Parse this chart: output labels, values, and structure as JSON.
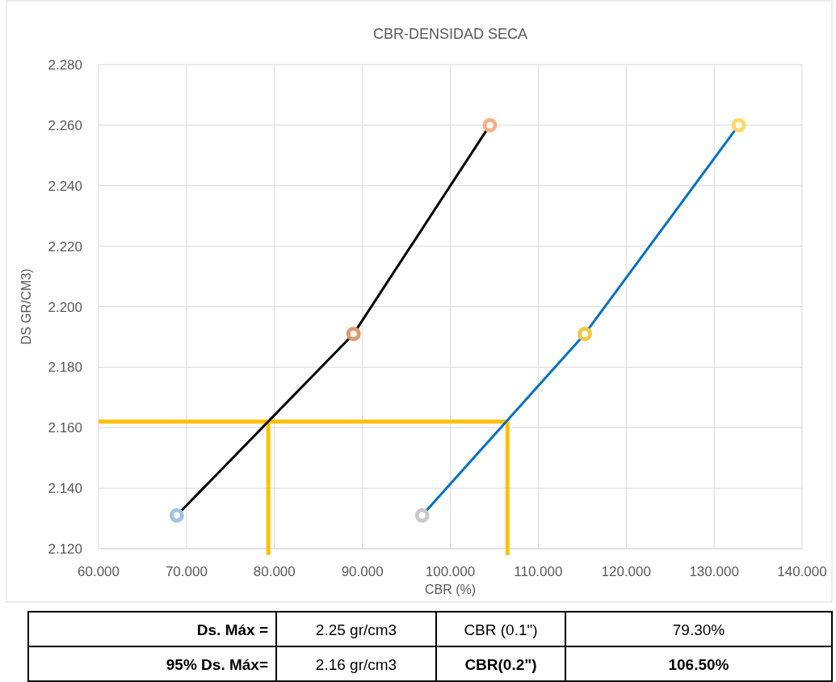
{
  "chart_data": {
    "type": "line",
    "title": "CBR-DENSIDAD SECA",
    "xlabel": "CBR (%)",
    "ylabel": "DS GR/CM3)",
    "series": [
      {
        "color": "#000000",
        "x": [
          68.9,
          89.0,
          104.5
        ],
        "values": [
          2.131,
          2.191,
          2.26
        ],
        "colors": [
          "#9dc3e6",
          "#dc9a70",
          "#f4b183"
        ]
      },
      {
        "color": "#0070c0",
        "x": [
          96.8,
          115.3,
          132.8
        ],
        "values": [
          2.131,
          2.191,
          2.26
        ],
        "colors": [
          "#c9c9c9",
          "#f0c845",
          "#ffd966"
        ]
      }
    ],
    "xlim": [
      60,
      140
    ],
    "ylim": [
      2.12,
      2.28
    ],
    "xticks": [
      {
        "value": 60,
        "label": "60.000"
      },
      {
        "value": 70,
        "label": "70.000"
      },
      {
        "value": 80,
        "label": "80.000"
      },
      {
        "value": 90,
        "label": "90.000"
      },
      {
        "value": 100,
        "label": "100.000"
      },
      {
        "value": 110,
        "label": "110.000"
      },
      {
        "value": 120,
        "label": "120.000"
      },
      {
        "value": 130,
        "label": "130.000"
      },
      {
        "value": 140,
        "label": "140.000"
      }
    ],
    "yticks": [
      {
        "value": 2.12,
        "label": "2.120"
      },
      {
        "value": 2.14,
        "label": "2.140"
      },
      {
        "value": 2.16,
        "label": "2.160"
      },
      {
        "value": 2.18,
        "label": "2.180"
      },
      {
        "value": 2.2,
        "label": "2.200"
      },
      {
        "value": 2.22,
        "label": "2.220"
      },
      {
        "value": 2.24,
        "label": "2.240"
      },
      {
        "value": 2.26,
        "label": "2.260"
      },
      {
        "value": 2.28,
        "label": "2.280"
      }
    ],
    "grid": true,
    "marker": "circle",
    "ref_lines": [
      {
        "axis": "y",
        "value": 2.162,
        "color": "#ffc000"
      },
      {
        "axis": "x",
        "value": 79.3,
        "color": "#ffc000"
      },
      {
        "axis": "x",
        "value": 106.5,
        "color": "#ffc000"
      }
    ],
    "annotations": [
      "Ds. Máx =",
      "2.25 gr/cm3",
      "CBR (0.1\")",
      "79.30%",
      "95% Ds. Máx=",
      "2.16 gr/cm3",
      "CBR(0.2\")",
      "106.50%"
    ]
  }
}
